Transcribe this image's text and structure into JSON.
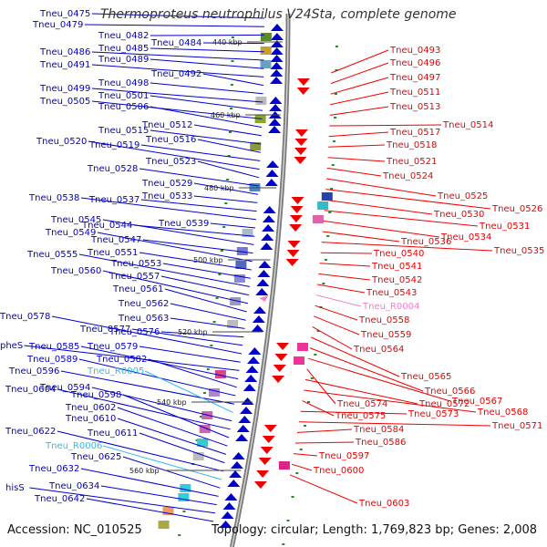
{
  "title": "Thermoproteus neutrophilus V24Sta, complete genome",
  "footer": {
    "accession": "Accession: NC_010525",
    "info": "Topology: circular; Length: 1,769,823 bp; Genes: 2,008"
  },
  "colors": {
    "forward": "#0000cc",
    "reverse": "#ee0000",
    "rna_pink": "#ee82c8",
    "rna_cyan": "#33bbee",
    "backbone": "#7a7a7a",
    "tick_green": "#228b22"
  },
  "ruler": [
    "440 kbp",
    "460 kbp",
    "480 kbp",
    "500 kbp",
    "520 kbp",
    "540 kbp",
    "560 kbp"
  ],
  "left_labels": [
    {
      "text": "Tneu_0475",
      "kind": "forward"
    },
    {
      "text": "Tneu_0479",
      "kind": "forward"
    },
    {
      "text": "Tneu_0482",
      "kind": "forward"
    },
    {
      "text": "Tneu_0484",
      "kind": "forward"
    },
    {
      "text": "Tneu_0485",
      "kind": "forward"
    },
    {
      "text": "Tneu_0486",
      "kind": "forward"
    },
    {
      "text": "Tneu_0489",
      "kind": "forward"
    },
    {
      "text": "Tneu_0491",
      "kind": "forward"
    },
    {
      "text": "Tneu_0492",
      "kind": "forward"
    },
    {
      "text": "Tneu_0498",
      "kind": "forward"
    },
    {
      "text": "Tneu_0499",
      "kind": "forward"
    },
    {
      "text": "Tneu_0501",
      "kind": "forward"
    },
    {
      "text": "Tneu_0505",
      "kind": "forward"
    },
    {
      "text": "Tneu_0506",
      "kind": "forward"
    },
    {
      "text": "Tneu_0512",
      "kind": "forward"
    },
    {
      "text": "Tneu_0515",
      "kind": "forward"
    },
    {
      "text": "Tneu_0516",
      "kind": "forward"
    },
    {
      "text": "Tneu_0519",
      "kind": "forward"
    },
    {
      "text": "Tneu_0520",
      "kind": "forward"
    },
    {
      "text": "Tneu_0523",
      "kind": "forward"
    },
    {
      "text": "Tneu_0528",
      "kind": "forward"
    },
    {
      "text": "Tneu_0529",
      "kind": "forward"
    },
    {
      "text": "Tneu_0533",
      "kind": "forward"
    },
    {
      "text": "Tneu_0537",
      "kind": "forward"
    },
    {
      "text": "Tneu_0538",
      "kind": "forward"
    },
    {
      "text": "Tneu_0539",
      "kind": "forward"
    },
    {
      "text": "Tneu_0544",
      "kind": "forward"
    },
    {
      "text": "Tneu_0545",
      "kind": "forward"
    },
    {
      "text": "Tneu_0547",
      "kind": "forward"
    },
    {
      "text": "Tneu_0549",
      "kind": "forward"
    },
    {
      "text": "Tneu_0551",
      "kind": "forward"
    },
    {
      "text": "Tneu_0553",
      "kind": "forward"
    },
    {
      "text": "Tneu_0555",
      "kind": "forward"
    },
    {
      "text": "Tneu_0557",
      "kind": "forward"
    },
    {
      "text": "Tneu_0560",
      "kind": "forward"
    },
    {
      "text": "Tneu_0561",
      "kind": "forward"
    },
    {
      "text": "Tneu_0562",
      "kind": "forward"
    },
    {
      "text": "Tneu_0563",
      "kind": "forward"
    },
    {
      "text": "Tneu_0576",
      "kind": "forward"
    },
    {
      "text": "Tneu_0577",
      "kind": "forward"
    },
    {
      "text": "Tneu_0578",
      "kind": "forward"
    },
    {
      "text": "Tneu_0579",
      "kind": "forward"
    },
    {
      "text": "pheS",
      "kind": "forward"
    },
    {
      "text": "Tneu_0585",
      "kind": "forward"
    },
    {
      "text": "Tneu_0582",
      "kind": "forward"
    },
    {
      "text": "Tneu_0589",
      "kind": "forward"
    },
    {
      "text": "Tneu_0596",
      "kind": "forward"
    },
    {
      "text": "Tneu_R0005",
      "kind": "rna_cyan"
    },
    {
      "text": "Tneu_0594",
      "kind": "forward"
    },
    {
      "text": "Tneu_0604",
      "kind": "forward"
    },
    {
      "text": "Tneu_0598",
      "kind": "forward"
    },
    {
      "text": "Tneu_0602",
      "kind": "forward"
    },
    {
      "text": "Tneu_0610",
      "kind": "forward"
    },
    {
      "text": "Tneu_0611",
      "kind": "forward"
    },
    {
      "text": "Tneu_0622",
      "kind": "forward"
    },
    {
      "text": "Tneu_R0006",
      "kind": "rna_cyan"
    },
    {
      "text": "Tneu_0625",
      "kind": "forward"
    },
    {
      "text": "Tneu_0632",
      "kind": "forward"
    },
    {
      "text": "Tneu_0634",
      "kind": "forward"
    },
    {
      "text": "hisS",
      "kind": "forward"
    },
    {
      "text": "Tneu_0642",
      "kind": "forward"
    }
  ],
  "right_labels": [
    {
      "text": "Tneu_0493",
      "kind": "reverse"
    },
    {
      "text": "Tneu_0496",
      "kind": "reverse"
    },
    {
      "text": "Tneu_0497",
      "kind": "reverse"
    },
    {
      "text": "Tneu_0511",
      "kind": "reverse"
    },
    {
      "text": "Tneu_0513",
      "kind": "reverse"
    },
    {
      "text": "Tneu_0514",
      "kind": "reverse"
    },
    {
      "text": "Tneu_0517",
      "kind": "reverse"
    },
    {
      "text": "Tneu_0518",
      "kind": "reverse"
    },
    {
      "text": "Tneu_0521",
      "kind": "reverse"
    },
    {
      "text": "Tneu_0524",
      "kind": "reverse"
    },
    {
      "text": "Tneu_0525",
      "kind": "reverse"
    },
    {
      "text": "Tneu_0526",
      "kind": "reverse"
    },
    {
      "text": "Tneu_0530",
      "kind": "reverse"
    },
    {
      "text": "Tneu_0531",
      "kind": "reverse"
    },
    {
      "text": "Tneu_0534",
      "kind": "reverse"
    },
    {
      "text": "Tneu_0536",
      "kind": "reverse"
    },
    {
      "text": "Tneu_0535",
      "kind": "reverse"
    },
    {
      "text": "Tneu_0540",
      "kind": "reverse"
    },
    {
      "text": "Tneu_0541",
      "kind": "reverse"
    },
    {
      "text": "Tneu_0542",
      "kind": "reverse"
    },
    {
      "text": "Tneu_0543",
      "kind": "reverse"
    },
    {
      "text": "Tneu_R0004",
      "kind": "rna_pink"
    },
    {
      "text": "Tneu_0558",
      "kind": "reverse"
    },
    {
      "text": "Tneu_0559",
      "kind": "reverse"
    },
    {
      "text": "Tneu_0564",
      "kind": "reverse"
    },
    {
      "text": "Tneu_0565",
      "kind": "reverse"
    },
    {
      "text": "Tneu_0566",
      "kind": "reverse"
    },
    {
      "text": "Tneu_0567",
      "kind": "reverse"
    },
    {
      "text": "Tneu_0574",
      "kind": "reverse"
    },
    {
      "text": "Tneu_0572",
      "kind": "reverse"
    },
    {
      "text": "Tneu_0568",
      "kind": "reverse"
    },
    {
      "text": "Tneu_0575",
      "kind": "reverse"
    },
    {
      "text": "Tneu_0573",
      "kind": "reverse"
    },
    {
      "text": "Tneu_0571",
      "kind": "reverse"
    },
    {
      "text": "Tneu_0584",
      "kind": "reverse"
    },
    {
      "text": "Tneu_0586",
      "kind": "reverse"
    },
    {
      "text": "Tneu_0597",
      "kind": "reverse"
    },
    {
      "text": "Tneu_0600",
      "kind": "reverse"
    },
    {
      "text": "Tneu_0603",
      "kind": "reverse"
    }
  ]
}
